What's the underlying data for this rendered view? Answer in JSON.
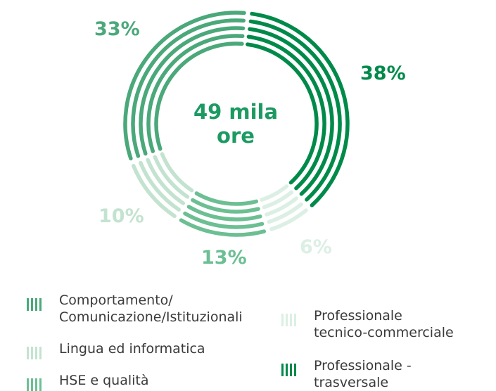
{
  "chart_data": {
    "type": "pie",
    "style": "concentric-donut",
    "center_label": {
      "line1": "49 mila",
      "line2": "ore"
    },
    "series": [
      {
        "name": "Professionale - trasversale",
        "value": 38,
        "label": "38%",
        "color": "#008a4a"
      },
      {
        "name": "Professionale tecnico-commerciale",
        "value": 6,
        "label": "6%",
        "color": "#dcefe4"
      },
      {
        "name": "HSE e qualità",
        "value": 13,
        "label": "13%",
        "color": "#6cbf93"
      },
      {
        "name": "Lingua ed informatica",
        "value": 10,
        "label": "10%",
        "color": "#c3e3d0"
      },
      {
        "name": "Comportamento/Comunicazione/Istituzionali",
        "value": 33,
        "label": "33%",
        "color": "#4aa87a"
      }
    ]
  },
  "legend": {
    "items": [
      {
        "label": "Comportamento/\nComunicazione/Istituzionali",
        "color": "#4aa87a"
      },
      {
        "label": "Lingua ed informatica",
        "color": "#c3e3d0"
      },
      {
        "label": "HSE e qualità",
        "color": "#6cbf93"
      },
      {
        "label": "Professionale\ntecnico-commerciale",
        "color": "#dcefe4"
      },
      {
        "label": "Professionale -\ntrasversale",
        "color": "#008a4a"
      }
    ]
  }
}
